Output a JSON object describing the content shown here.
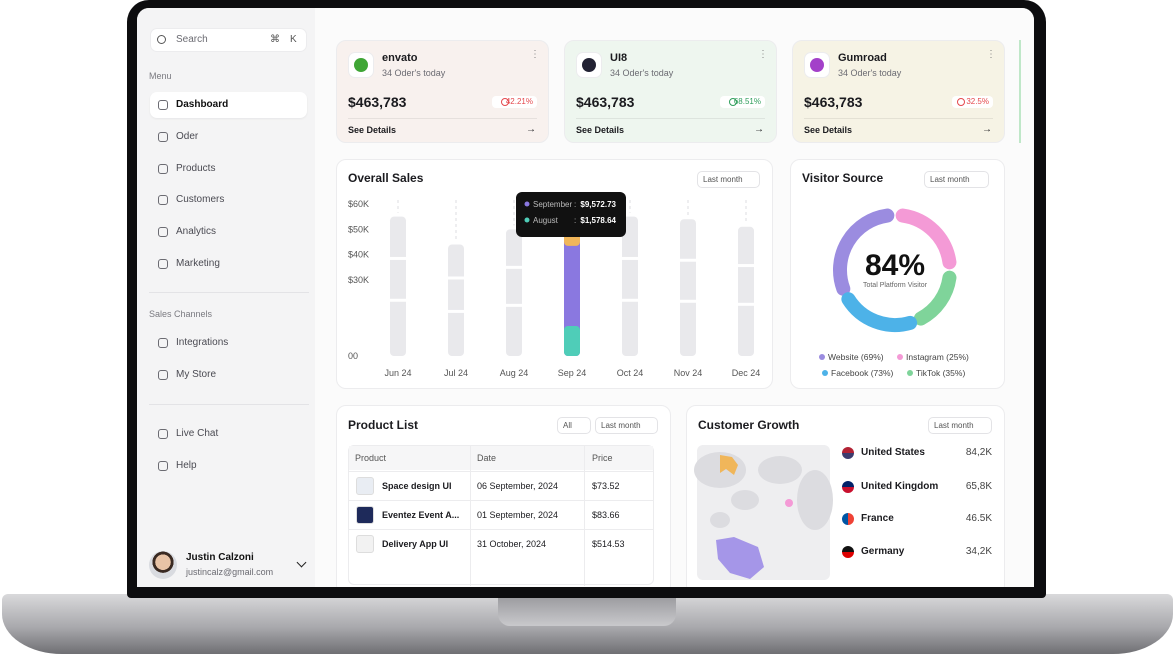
{
  "sidebar": {
    "search": "Search",
    "shortcut": [
      "⌘",
      "K"
    ],
    "menu_label": "Menu",
    "menu": [
      "Dashboard",
      "Oder",
      "Products",
      "Customers",
      "Analytics",
      "Marketing"
    ],
    "channels_label": "Sales Channels",
    "channels": [
      "Integrations",
      "My Store"
    ],
    "support": [
      "Live Chat",
      "Help"
    ],
    "user": {
      "name": "Justin Calzoni",
      "email": "justincalz@gmail.com"
    }
  },
  "stats": [
    {
      "name": "envato",
      "subtitle": "34 Oder's today",
      "amount": "$463,783",
      "change": "42.21%",
      "change_color": "#e5484d",
      "background": "#f8f1ee",
      "link": "See Details"
    },
    {
      "name": "UI8",
      "subtitle": "34 Oder's today",
      "amount": "$463,783",
      "change": "68.51%",
      "change_color": "#2f9e5b",
      "background": "#eef6ef",
      "link": "See Details"
    },
    {
      "name": "Gumroad",
      "subtitle": "34 Oder's today",
      "amount": "$463,783",
      "change": "32.5%",
      "change_color": "#e5484d",
      "background": "#f6f3e5",
      "link": "See Details"
    }
  ],
  "overall_sales": {
    "title": "Overall Sales",
    "filter": "Last month",
    "tooltip": [
      {
        "label": "September",
        "value": "$9,572.73"
      },
      {
        "label": "August",
        "value": "$1,578.64"
      }
    ],
    "chart": {
      "type": "bar",
      "categories": [
        "Jun 24",
        "Jul 24",
        "Aug 24",
        "Sep 24",
        "Oct 24",
        "Nov 24",
        "Dec 24"
      ],
      "values": [
        55000,
        44000,
        50000,
        49000,
        55000,
        54000,
        51000
      ],
      "color": "#e9e9ec",
      "highlight_index": 3,
      "highlight_color": "#8a78e0",
      "ylim": [
        0,
        60000
      ],
      "yticks": [
        {
          "value": 0,
          "label": "00"
        },
        {
          "value": 30000,
          "label": "$30K"
        },
        {
          "value": 40000,
          "label": "$40K"
        },
        {
          "value": 50000,
          "label": "$50K"
        },
        {
          "value": 60000,
          "label": "$60K"
        }
      ]
    }
  },
  "visitor_source": {
    "title": "Visitor Source",
    "filter": "Last month",
    "center_value": "84%",
    "center_label": "Total Platform Visitor",
    "legend": [
      {
        "label": "Website (69%)",
        "color": "#9b8ce0"
      },
      {
        "label": "Instagram (25%)",
        "color": "#f49ad6"
      },
      {
        "label": "Facebook (73%)",
        "color": "#4db2e8"
      },
      {
        "label": "TikTok (35%)",
        "color": "#7fd49a"
      }
    ]
  },
  "product_list": {
    "title": "Product List",
    "filters": [
      "All",
      "Last month"
    ],
    "columns": [
      "Product",
      "Date",
      "Price"
    ],
    "rows": [
      [
        "Space design UI",
        "06 September, 2024",
        "$73.52"
      ],
      [
        "Eventez Event A...",
        "01 September, 2024",
        "$83.66"
      ],
      [
        "Delivery App UI",
        "31 October, 2024",
        "$514.53"
      ]
    ]
  },
  "customer_growth": {
    "title": "Customer Growth",
    "filter": "Last month",
    "countries": [
      {
        "name": "United States",
        "value": "84,2K"
      },
      {
        "name": "United Kingdom",
        "value": "65,8K"
      },
      {
        "name": "France",
        "value": "46.5K"
      },
      {
        "name": "Germany",
        "value": "34,2K"
      }
    ]
  }
}
